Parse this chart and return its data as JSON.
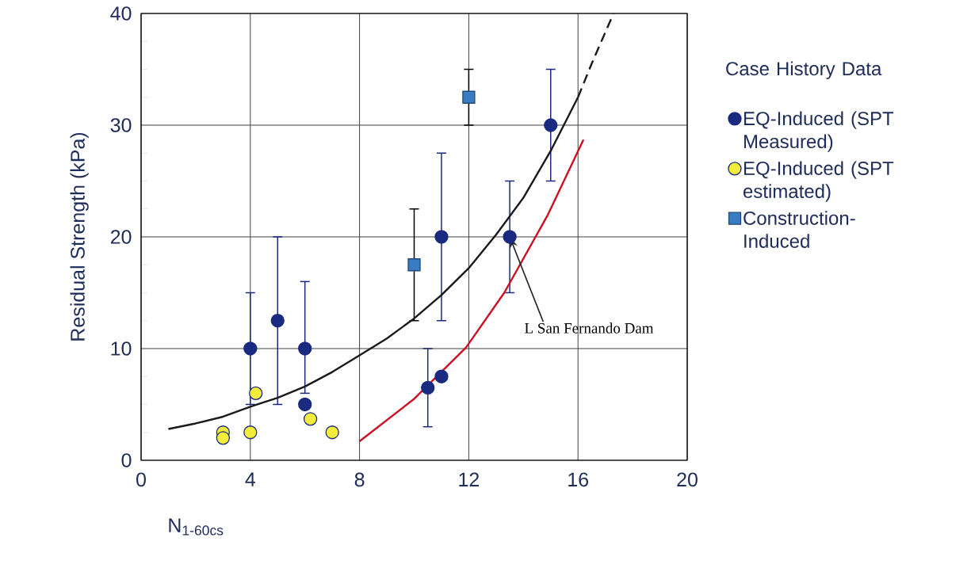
{
  "chart_data": {
    "type": "scatter",
    "xlabel": "N$_{1-60cs}$",
    "ylabel": "Residual Strength  (kPa)",
    "legend_title": "Case History Data",
    "xlim": [
      0,
      20
    ],
    "ylim": [
      0,
      40
    ],
    "xticks": [
      0,
      4,
      8,
      12,
      16,
      20
    ],
    "yticks": [
      0,
      {
        "value": 2.5,
        "label": null
      },
      {
        "value": 5,
        "label": null
      },
      {
        "value": 7.5,
        "label": null
      },
      10,
      {
        "value": 12.5,
        "label": null
      },
      {
        "value": 15,
        "label": null
      },
      {
        "value": 17.5,
        "label": null
      },
      20,
      {
        "value": 22.5,
        "label": null
      },
      {
        "value": 25,
        "label": null
      },
      {
        "value": 27.5,
        "label": null
      },
      30,
      {
        "value": 32.5,
        "label": null
      },
      {
        "value": 35,
        "label": null
      },
      {
        "value": 37.5,
        "label": null
      },
      40
    ],
    "grid": true,
    "legend": "right",
    "series": [
      {
        "name": "EQ-Induced (SPT Measured)",
        "marker": "circle",
        "color": "#1a2a80",
        "x": [
          4,
          5,
          6,
          6,
          11,
          10.5,
          11,
          13.5,
          15
        ],
        "values": [
          10,
          12.5,
          10,
          5,
          20,
          6.5,
          7.5,
          20,
          30
        ],
        "errors": [
          [
            5,
            15
          ],
          [
            5,
            20
          ],
          [
            6,
            16
          ],
          null,
          [
            12.5,
            27.5
          ],
          [
            3,
            10
          ],
          null,
          [
            15,
            25
          ],
          [
            25,
            35
          ]
        ]
      },
      {
        "name": "EQ-Induced (SPT estimated)",
        "marker": "circle",
        "color": "#f3ec3a",
        "x": [
          3,
          3,
          4,
          4.2,
          6.2,
          7
        ],
        "values": [
          2.5,
          2,
          2.5,
          6,
          3.7,
          2.5
        ]
      },
      {
        "name": "Construction-Induced",
        "marker": "square",
        "color": "#3a7cc4",
        "x": [
          10,
          12
        ],
        "values": [
          17.5,
          32.5
        ],
        "errors": [
          [
            12.5,
            22.5
          ],
          [
            30,
            35
          ]
        ]
      },
      {
        "type": "line",
        "color": "#1a1a1a",
        "line_style": "solid",
        "x": [
          1,
          2,
          3,
          4,
          5,
          6,
          7,
          8,
          9,
          10,
          11,
          12,
          13,
          14,
          15,
          16
        ],
        "values": [
          2.8,
          3.3,
          3.9,
          4.8,
          5.6,
          6.6,
          7.9,
          9.4,
          10.9,
          12.7,
          14.8,
          17.2,
          20.2,
          23.5,
          27.7,
          32.5
        ]
      },
      {
        "type": "line",
        "color": "#1a1a1a",
        "line_style": "dashed",
        "x": [
          16,
          16.5,
          17.3
        ],
        "values": [
          32.5,
          35.5,
          40
        ]
      },
      {
        "type": "line",
        "color": "#cc1122",
        "line_style": "solid",
        "x": [
          8,
          10,
          11.9,
          13.3,
          14.9,
          16.2
        ],
        "values": [
          1.7,
          5.5,
          10.1,
          15,
          22,
          28.7
        ]
      }
    ],
    "annotations": [
      {
        "text": "L San Fernando Dam",
        "x": 13.5,
        "y": 20
      }
    ]
  }
}
